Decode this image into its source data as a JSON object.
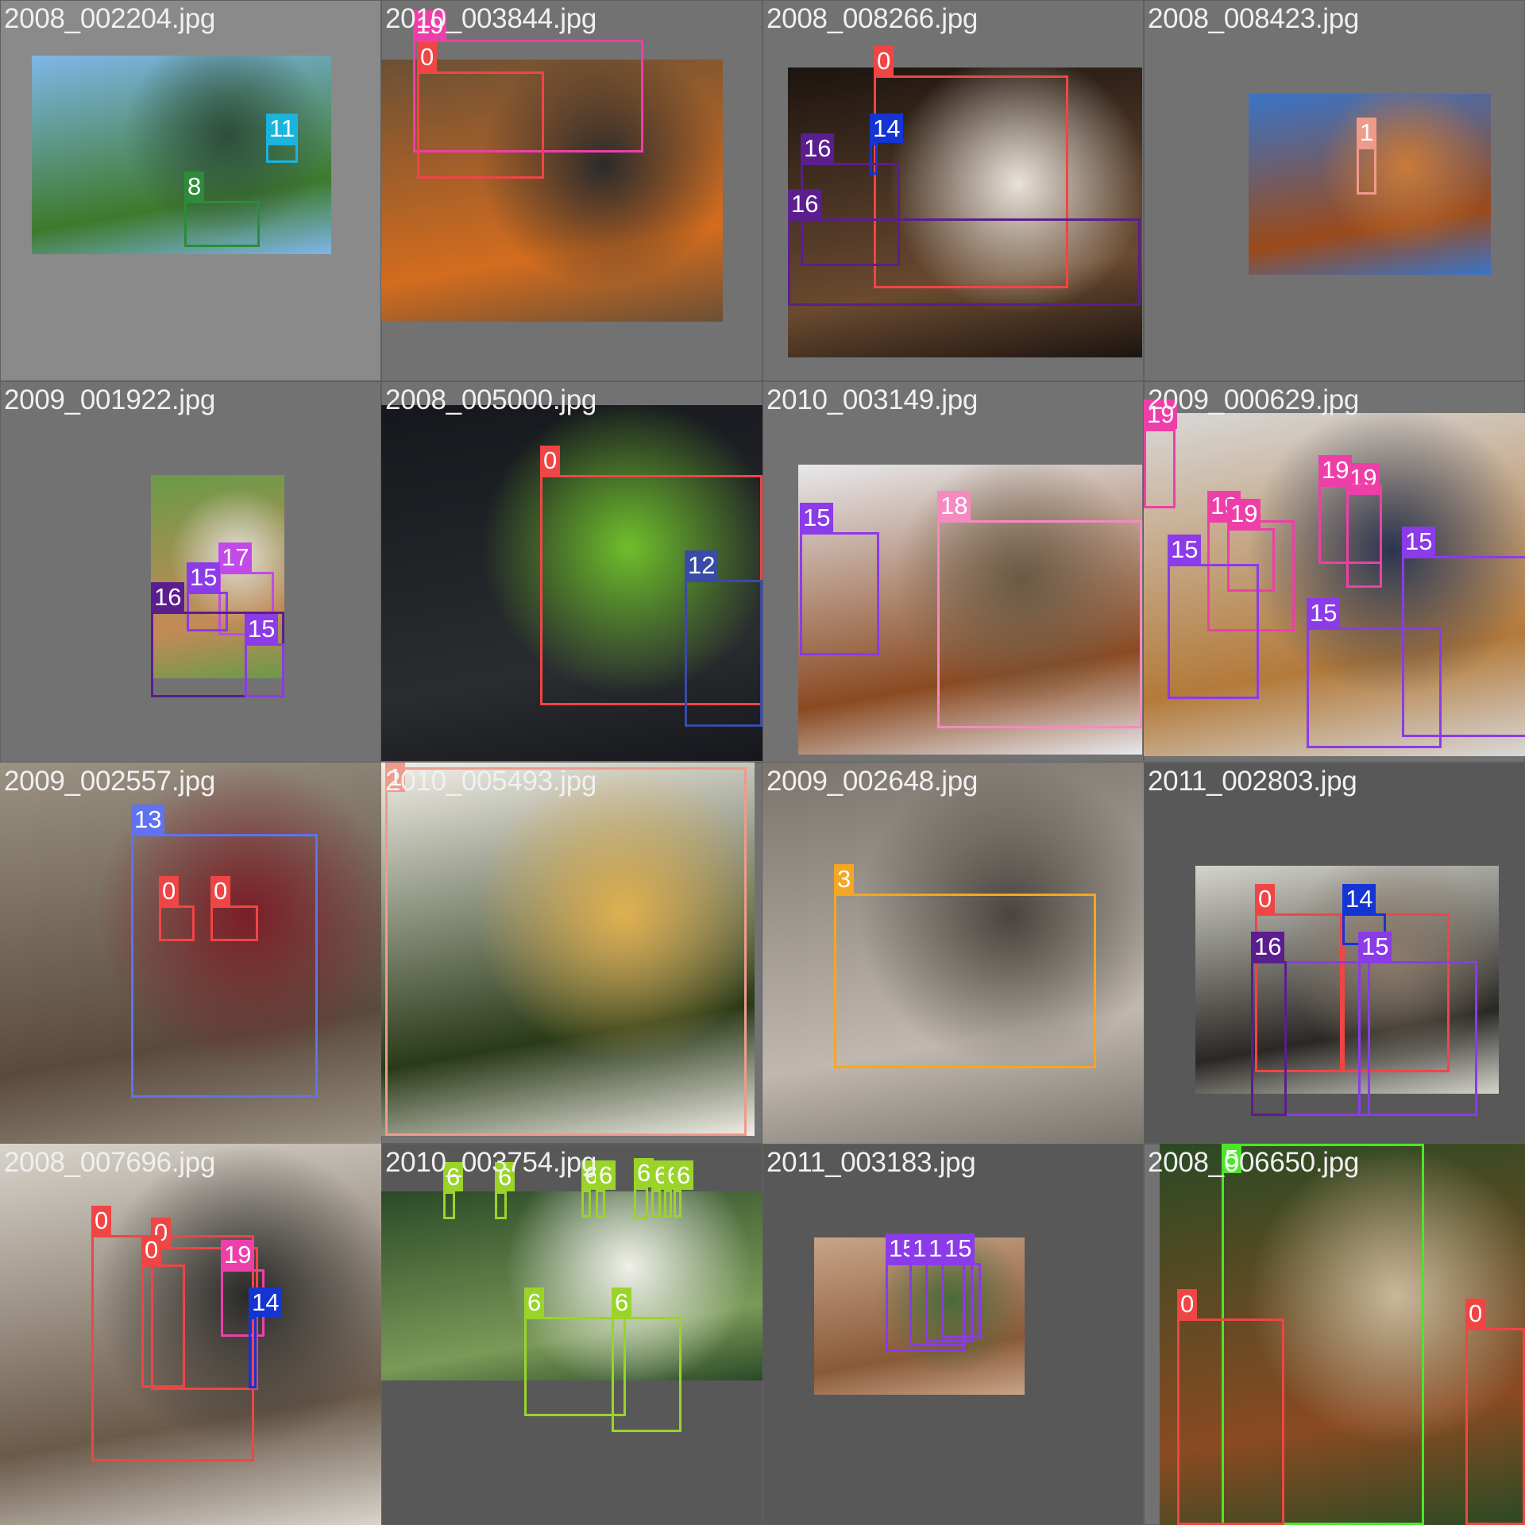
{
  "mosaic": {
    "tiles": [
      {
        "filename": "2008_002204.jpg",
        "tone": "light",
        "photo": {
          "colors": [
            "#7fb6e8",
            "#3d7a2c",
            "#2d4d3a"
          ]
        },
        "boxes": [
          {
            "class": "11",
            "color": "#1ab4dc"
          },
          {
            "class": "8",
            "color": "#2e8b3a"
          }
        ]
      },
      {
        "filename": "2010_003844.jpg",
        "tone": "mid",
        "photo": {
          "colors": [
            "#6b5036",
            "#d36c1e",
            "#2b2b2b"
          ]
        },
        "boxes": [
          {
            "class": "19",
            "color": "#ee3fa8"
          },
          {
            "class": "0",
            "color": "#f04545"
          }
        ]
      },
      {
        "filename": "2008_008266.jpg",
        "tone": "mid",
        "photo": {
          "colors": [
            "#1c1410",
            "#6a4a30",
            "#e8e2da"
          ]
        },
        "boxes": [
          {
            "class": "0",
            "color": "#f04545"
          },
          {
            "class": "14",
            "color": "#1534d4"
          },
          {
            "class": "16",
            "color": "#5a1e8e"
          },
          {
            "class": "16",
            "color": "#5a1e8e"
          }
        ]
      },
      {
        "filename": "2008_008423.jpg",
        "tone": "mid",
        "photo": {
          "colors": [
            "#3a74c8",
            "#9b4a1a",
            "#c97a3a"
          ]
        },
        "boxes": [
          {
            "class": "1",
            "color": "#ef9b8c"
          }
        ]
      },
      {
        "filename": "2009_001922.jpg",
        "tone": "mid",
        "photo": {
          "colors": [
            "#6a9a48",
            "#c48a58",
            "#e4e0d8"
          ]
        },
        "boxes": [
          {
            "class": "17",
            "color": "#c24ae8"
          },
          {
            "class": "15",
            "color": "#8b3be8"
          },
          {
            "class": "16",
            "color": "#5a1e8e"
          },
          {
            "class": "15",
            "color": "#8b3be8"
          }
        ]
      },
      {
        "filename": "2008_005000.jpg",
        "tone": "mid",
        "photo": {
          "colors": [
            "#15171c",
            "#2a2c30",
            "#6fbf2c"
          ]
        },
        "boxes": [
          {
            "class": "0",
            "color": "#f04545"
          },
          {
            "class": "12",
            "color": "#3a4aa8"
          }
        ]
      },
      {
        "filename": "2010_003149.jpg",
        "tone": "mid",
        "photo": {
          "colors": [
            "#e8e8ec",
            "#8a4a22",
            "#6a5a44"
          ]
        },
        "boxes": [
          {
            "class": "15",
            "color": "#8b3be8"
          },
          {
            "class": "18",
            "color": "#f58ac0"
          }
        ]
      },
      {
        "filename": "2009_000629.jpg",
        "tone": "mid",
        "photo": {
          "colors": [
            "#d8d8d8",
            "#b37a3a",
            "#2a3550"
          ]
        },
        "boxes": [
          {
            "class": "19",
            "color": "#ee3fa8"
          },
          {
            "class": "19",
            "color": "#ee3fa8"
          },
          {
            "class": "19",
            "color": "#ee3fa8"
          },
          {
            "class": "19",
            "color": "#ee3fa8"
          },
          {
            "class": "19",
            "color": "#ee3fa8"
          },
          {
            "class": "15",
            "color": "#8b3be8"
          },
          {
            "class": "15",
            "color": "#8b3be8"
          },
          {
            "class": "15",
            "color": "#8b3be8"
          }
        ]
      },
      {
        "filename": "2009_002557.jpg",
        "tone": "mid",
        "photo": {
          "colors": [
            "#9a9284",
            "#5a4a3c",
            "#7a1e26"
          ]
        },
        "boxes": [
          {
            "class": "13",
            "color": "#6072f0"
          },
          {
            "class": "0",
            "color": "#f04545"
          },
          {
            "class": "0",
            "color": "#f04545"
          }
        ]
      },
      {
        "filename": "2010_005493.jpg",
        "tone": "mid",
        "photo": {
          "colors": [
            "#f2eee8",
            "#2a3a18",
            "#e0b050"
          ]
        },
        "boxes": [
          {
            "class": "1",
            "color": "#ef9b8c"
          }
        ]
      },
      {
        "filename": "2009_002648.jpg",
        "tone": "dark",
        "photo": {
          "colors": [
            "#7a736c",
            "#c0b8ae",
            "#4a443e"
          ]
        },
        "boxes": [
          {
            "class": "3",
            "color": "#f5a623"
          }
        ]
      },
      {
        "filename": "2011_002803.jpg",
        "tone": "dark",
        "photo": {
          "colors": [
            "#d4d4cc",
            "#2a2824",
            "#8a7a6a"
          ]
        },
        "boxes": [
          {
            "class": "0",
            "color": "#f04545"
          },
          {
            "class": "0",
            "color": "#f04545"
          },
          {
            "class": "14",
            "color": "#1534d4"
          },
          {
            "class": "15",
            "color": "#8b3be8"
          },
          {
            "class": "16",
            "color": "#5a1e8e"
          },
          {
            "class": "15",
            "color": "#8b3be8"
          }
        ]
      },
      {
        "filename": "2008_007696.jpg",
        "tone": "dark",
        "photo": {
          "colors": [
            "#d8d4cc",
            "#6a5a4a",
            "#2a2a2a"
          ]
        },
        "boxes": [
          {
            "class": "0",
            "color": "#f04545"
          },
          {
            "class": "0",
            "color": "#f04545"
          },
          {
            "class": "0",
            "color": "#f04545"
          },
          {
            "class": "19",
            "color": "#ee3fa8"
          },
          {
            "class": "14",
            "color": "#1534d4"
          }
        ]
      },
      {
        "filename": "2010_003754.jpg",
        "tone": "dark",
        "photo": {
          "colors": [
            "#2a4a28",
            "#7a9a58",
            "#f0f0ea"
          ]
        },
        "boxes": [
          {
            "class": "6",
            "color": "#9ad42a"
          },
          {
            "class": "6",
            "color": "#9ad42a"
          },
          {
            "class": "6",
            "color": "#9ad42a"
          },
          {
            "class": "6",
            "color": "#9ad42a"
          },
          {
            "class": "6",
            "color": "#9ad42a"
          },
          {
            "class": "6",
            "color": "#9ad42a"
          },
          {
            "class": "6",
            "color": "#9ad42a"
          },
          {
            "class": "6",
            "color": "#9ad42a"
          },
          {
            "class": "6",
            "color": "#9ad42a"
          },
          {
            "class": "6",
            "color": "#9ad42a"
          }
        ]
      },
      {
        "filename": "2011_003183.jpg",
        "tone": "dark",
        "photo": {
          "colors": [
            "#c8a488",
            "#8a5a38",
            "#4a6a3a"
          ]
        },
        "boxes": [
          {
            "class": "15",
            "color": "#8b3be8"
          },
          {
            "class": "15",
            "color": "#8b3be8"
          },
          {
            "class": "15",
            "color": "#8b3be8"
          },
          {
            "class": "15",
            "color": "#8b3be8"
          }
        ]
      },
      {
        "filename": "2008_006650.jpg",
        "tone": "mid",
        "photo": {
          "colors": [
            "#2a4a24",
            "#8a4a22",
            "#c8b89a"
          ]
        },
        "boxes": [
          {
            "class": "5",
            "color": "#4ce62a"
          },
          {
            "class": "0",
            "color": "#f04545"
          },
          {
            "class": "0",
            "color": "#f04545"
          }
        ]
      }
    ]
  }
}
